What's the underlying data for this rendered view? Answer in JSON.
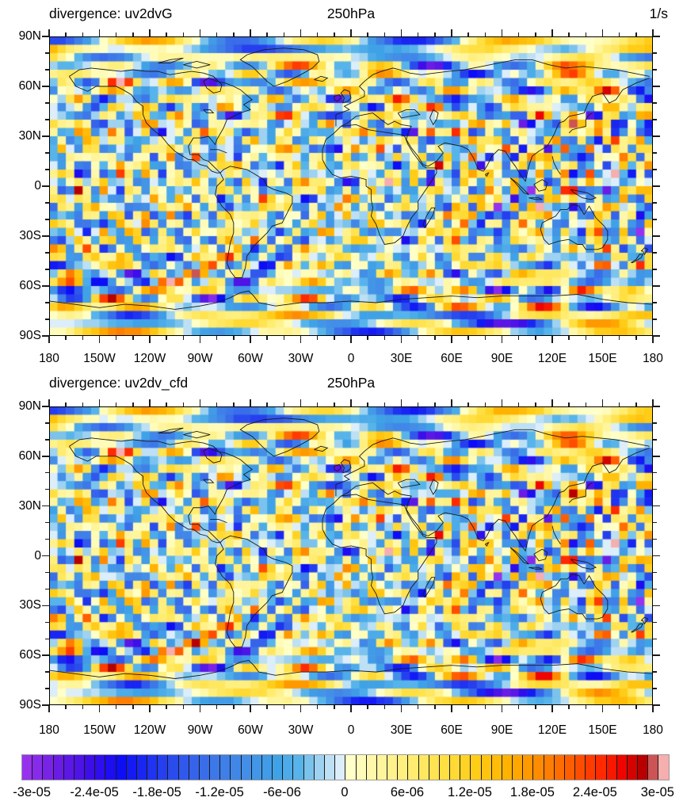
{
  "panel1": {
    "title": "divergence: uv2dvG",
    "level": "250hPa",
    "units": "1/s"
  },
  "panel2": {
    "title": "divergence: uv2dv_cfd",
    "level": "250hPa",
    "units": ""
  },
  "axes": {
    "lon_labels": [
      "180",
      "150W",
      "120W",
      "90W",
      "60W",
      "30W",
      "0",
      "30E",
      "60E",
      "90E",
      "120E",
      "150E",
      "180"
    ],
    "lat_labels": [
      "90N",
      "60N",
      "30N",
      "0",
      "30S",
      "60S",
      "90S"
    ]
  },
  "colorbar": {
    "labels": [
      "-3e-05",
      "-2.4e-05",
      "-1.8e-05",
      "-1.2e-05",
      "-6e-06",
      "0",
      "6e-06",
      "1.2e-05",
      "1.8e-05",
      "2.4e-05",
      "3e-05"
    ],
    "boxes": 62
  },
  "chart_data": {
    "type": "heatmap",
    "subtype": "global-map-raster",
    "projection": "cylindrical-equidistant",
    "panels": [
      {
        "title": "divergence: uv2dvG",
        "center_label": "250hPa",
        "units": "1/s"
      },
      {
        "title": "divergence: uv2dv_cfd",
        "center_label": "250hPa",
        "units": ""
      }
    ],
    "x_axis": {
      "ticks": [
        "180",
        "150W",
        "120W",
        "90W",
        "60W",
        "30W",
        "0",
        "30E",
        "60E",
        "90E",
        "120E",
        "150E",
        "180"
      ],
      "major_every_deg": 30,
      "minor_every_deg": 10,
      "range": [
        -180,
        180
      ]
    },
    "y_axis": {
      "ticks": [
        "90N",
        "60N",
        "30N",
        "0",
        "30S",
        "60S",
        "90S"
      ],
      "major_every_deg": 30,
      "minor_every_deg": 10,
      "range": [
        -90,
        90
      ]
    },
    "colorbar": {
      "min": -3e-05,
      "max": 3e-05,
      "step": 1e-06,
      "boxes": 62,
      "labels": [
        "-3e-05",
        "-2.4e-05",
        "-1.8e-05",
        "-1.2e-05",
        "-6e-06",
        "0",
        "6e-06",
        "1.2e-05",
        "1.8e-05",
        "2.4e-05",
        "3e-05"
      ],
      "palette_stops": [
        [
          0,
          "#9632EE"
        ],
        [
          3,
          "#6A1CE4"
        ],
        [
          6,
          "#3E0EE8"
        ],
        [
          9,
          "#0D0DF6"
        ],
        [
          12,
          "#1F33F0"
        ],
        [
          15,
          "#3158EC"
        ],
        [
          18,
          "#3D78E9"
        ],
        [
          21,
          "#438EE7"
        ],
        [
          24,
          "#40A2E6"
        ],
        [
          26,
          "#57B4EA"
        ],
        [
          28,
          "#9ED2F0"
        ],
        [
          30,
          "#DCEEF9"
        ],
        [
          31,
          "#FFFFC8"
        ],
        [
          34,
          "#FFF59C"
        ],
        [
          37,
          "#FFEC70"
        ],
        [
          40,
          "#FFDF42"
        ],
        [
          43,
          "#FFCD18"
        ],
        [
          46,
          "#FFB300"
        ],
        [
          49,
          "#FF8C00"
        ],
        [
          52,
          "#FF5E00"
        ],
        [
          55,
          "#FF2A00"
        ],
        [
          57,
          "#EE0500"
        ],
        [
          59,
          "#B80000"
        ],
        [
          60,
          "#CC5454"
        ],
        [
          61,
          "#F6AEAE"
        ]
      ]
    },
    "grid": {
      "nlon": 72,
      "nlat": 36
    },
    "field_summary": "Quasi-random global divergence anomalies at 250 hPa spanning roughly -3e-05 to +3e-05 1/s; the two panels (spherical-harmonic vs centered-finite-difference method) show visually near-identical patterns, with zonally elongated bands near the poles and coastline overlay."
  }
}
